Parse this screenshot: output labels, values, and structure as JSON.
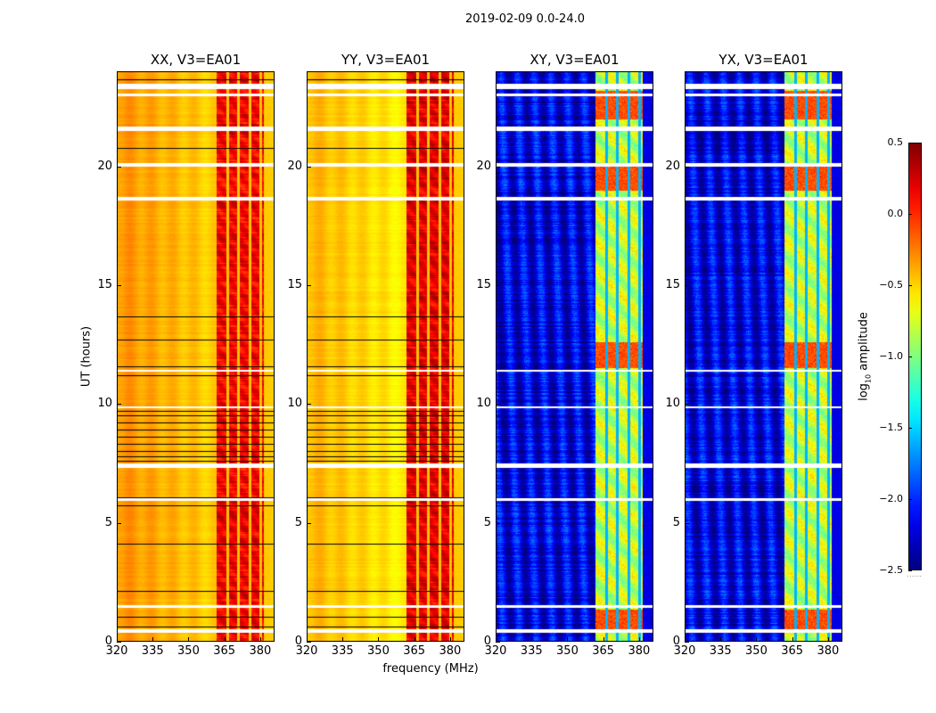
{
  "chart_data": {
    "type": "heatmap",
    "title": "2019-02-09 0.0-24.0",
    "xlabel": "frequency (MHz)",
    "ylabel": "UT (hours)",
    "xlim": [
      320,
      386
    ],
    "ylim": [
      0,
      24
    ],
    "xticks": [
      "320",
      "335",
      "350",
      "365",
      "380"
    ],
    "xtick_values": [
      320,
      335,
      350,
      365,
      380
    ],
    "yticks": [
      "0",
      "5",
      "10",
      "15",
      "20"
    ],
    "ytick_values": [
      0,
      5,
      10,
      15,
      20
    ],
    "panels": [
      {
        "title": "XX, V3=EA01",
        "kind": "parallel",
        "baseline_log_amp": -0.3,
        "rfi_log_amp": 0.15
      },
      {
        "title": "YY, V3=EA01",
        "kind": "parallel",
        "baseline_log_amp": -0.4,
        "rfi_log_amp": 0.2
      },
      {
        "title": "XY, V3=EA01",
        "kind": "cross",
        "baseline_log_amp": -2.2,
        "rfi_log_amp": -0.8
      },
      {
        "title": "YX, V3=EA01",
        "kind": "cross",
        "baseline_log_amp": -2.2,
        "rfi_log_amp": -0.8
      }
    ],
    "rfi_band_mhz": [
      362,
      382
    ],
    "rfi_separators_mhz": [
      366.5,
      371,
      376,
      380.5
    ],
    "flagged_hours_white": [
      [
        0.35,
        0.5
      ],
      [
        1.4,
        1.5
      ],
      [
        5.9,
        6.0
      ],
      [
        7.3,
        7.5
      ],
      [
        9.8,
        9.9
      ],
      [
        11.35,
        11.45
      ],
      [
        18.6,
        18.75
      ],
      [
        20.0,
        20.15
      ],
      [
        21.5,
        21.7
      ],
      [
        23.0,
        23.1
      ],
      [
        23.3,
        23.5
      ]
    ],
    "black_lines_hours": [
      0.6,
      1.0,
      2.1,
      4.1,
      5.7,
      6.05,
      7.6,
      7.8,
      8.0,
      8.3,
      8.6,
      8.9,
      9.2,
      9.5,
      9.7,
      11.2,
      11.6,
      12.7,
      13.7,
      20.8,
      23.7
    ],
    "bright_cross_hours": [
      [
        0.4,
        1.3
      ],
      [
        11.5,
        12.6
      ],
      [
        19.0,
        20.0
      ],
      [
        22.0,
        23.2
      ]
    ],
    "colorbar": {
      "label_main": "log",
      "label_sub": "10",
      "label_rest": " amplitude",
      "range": [
        -2.5,
        0.5
      ],
      "ticks": [
        "0.5",
        "0.0",
        "−0.5",
        "−1.0",
        "−1.5",
        "−2.0",
        "−2.5"
      ],
      "tick_values": [
        0.5,
        0.0,
        -0.5,
        -1.0,
        -1.5,
        -2.0,
        -2.5
      ],
      "colormap": "jet",
      "under_marker": "......"
    }
  }
}
